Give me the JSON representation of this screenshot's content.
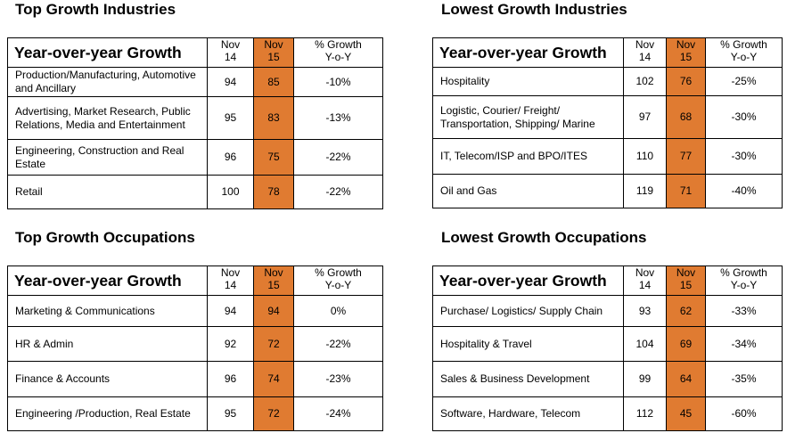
{
  "headers": {
    "main": "Year-over-year Growth",
    "col1_line1": "Nov",
    "col1_line2": "14",
    "col2_line1": "Nov",
    "col2_line2": "15",
    "col3_line1": "% Growth",
    "col3_line2": "Y-o-Y"
  },
  "colors": {
    "highlight_column": "#e07b31"
  },
  "top_industries": {
    "title": "Top Growth Industries",
    "rows": [
      {
        "name": "Production/Manufacturing, Automotive and Ancillary",
        "nov14": "94",
        "nov15": "85",
        "growth": "-10%"
      },
      {
        "name": "Advertising, Market Research, Public Relations, Media and Entertainment",
        "nov14": "95",
        "nov15": "83",
        "growth": "-13%"
      },
      {
        "name": "Engineering, Construction and Real Estate",
        "nov14": "96",
        "nov15": "75",
        "growth": "-22%"
      },
      {
        "name": "Retail",
        "nov14": "100",
        "nov15": "78",
        "growth": "-22%"
      }
    ]
  },
  "lowest_industries": {
    "title": "Lowest Growth Industries",
    "rows": [
      {
        "name": "Hospitality",
        "nov14": "102",
        "nov15": "76",
        "growth": "-25%"
      },
      {
        "name": "Logistic, Courier/ Freight/ Transportation, Shipping/ Marine",
        "nov14": "97",
        "nov15": "68",
        "growth": "-30%"
      },
      {
        "name": "IT, Telecom/ISP and BPO/ITES",
        "nov14": "110",
        "nov15": "77",
        "growth": "-30%"
      },
      {
        "name": "Oil and Gas",
        "nov14": "119",
        "nov15": "71",
        "growth": "-40%"
      }
    ]
  },
  "top_occupations": {
    "title": "Top Growth Occupations",
    "rows": [
      {
        "name": "Marketing & Communications",
        "nov14": "94",
        "nov15": "94",
        "growth": "0%"
      },
      {
        "name": "HR & Admin",
        "nov14": "92",
        "nov15": "72",
        "growth": "-22%"
      },
      {
        "name": "Finance & Accounts",
        "nov14": "96",
        "nov15": "74",
        "growth": "-23%"
      },
      {
        "name": "Engineering /Production, Real Estate",
        "nov14": "95",
        "nov15": "72",
        "growth": "-24%"
      }
    ]
  },
  "lowest_occupations": {
    "title": "Lowest Growth Occupations",
    "rows": [
      {
        "name": "Purchase/ Logistics/ Supply Chain",
        "nov14": "93",
        "nov15": "62",
        "growth": "-33%"
      },
      {
        "name": "Hospitality & Travel",
        "nov14": "104",
        "nov15": "69",
        "growth": "-34%"
      },
      {
        "name": "Sales & Business Development",
        "nov14": "99",
        "nov15": "64",
        "growth": "-35%"
      },
      {
        "name": "Software, Hardware, Telecom",
        "nov14": "112",
        "nov15": "45",
        "growth": "-60%"
      }
    ]
  }
}
